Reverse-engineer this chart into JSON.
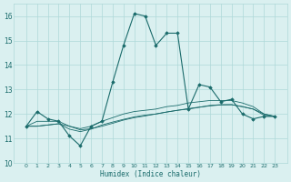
{
  "xlabel": "Humidex (Indice chaleur)",
  "x": [
    0,
    1,
    2,
    3,
    4,
    5,
    6,
    7,
    8,
    9,
    10,
    11,
    12,
    13,
    14,
    15,
    16,
    17,
    18,
    19,
    20,
    21,
    22,
    23
  ],
  "series1": [
    11.5,
    12.1,
    11.8,
    11.7,
    11.1,
    10.7,
    11.5,
    11.7,
    13.3,
    14.8,
    16.1,
    16.0,
    14.8,
    15.3,
    15.3,
    12.2,
    13.2,
    13.1,
    12.5,
    12.6,
    12.0,
    11.8,
    11.9,
    11.9
  ],
  "series2": [
    11.5,
    11.7,
    11.7,
    11.7,
    11.5,
    11.4,
    11.5,
    11.7,
    11.85,
    12.0,
    12.1,
    12.15,
    12.2,
    12.3,
    12.35,
    12.45,
    12.5,
    12.55,
    12.55,
    12.55,
    12.45,
    12.3,
    12.0,
    11.9
  ],
  "series3": [
    11.5,
    11.5,
    11.55,
    11.6,
    11.5,
    11.35,
    11.4,
    11.5,
    11.62,
    11.75,
    11.85,
    11.92,
    12.0,
    12.08,
    12.15,
    12.22,
    12.28,
    12.33,
    12.37,
    12.38,
    12.3,
    12.2,
    12.0,
    11.9
  ],
  "series4": [
    11.5,
    11.5,
    11.55,
    11.6,
    11.38,
    11.28,
    11.38,
    11.55,
    11.67,
    11.78,
    11.88,
    11.95,
    12.0,
    12.08,
    12.15,
    12.2,
    12.27,
    12.35,
    12.38,
    12.38,
    12.3,
    12.2,
    11.95,
    11.9
  ],
  "line_color": "#1a6b6b",
  "bg_color": "#daf0f0",
  "grid_color": "#aed8d8",
  "ylim": [
    10,
    16.5
  ],
  "yticks": [
    10,
    11,
    12,
    13,
    14,
    15,
    16
  ],
  "xticks": [
    0,
    1,
    2,
    3,
    4,
    5,
    6,
    7,
    8,
    9,
    10,
    11,
    12,
    13,
    14,
    15,
    16,
    17,
    18,
    19,
    20,
    21,
    22,
    23
  ]
}
